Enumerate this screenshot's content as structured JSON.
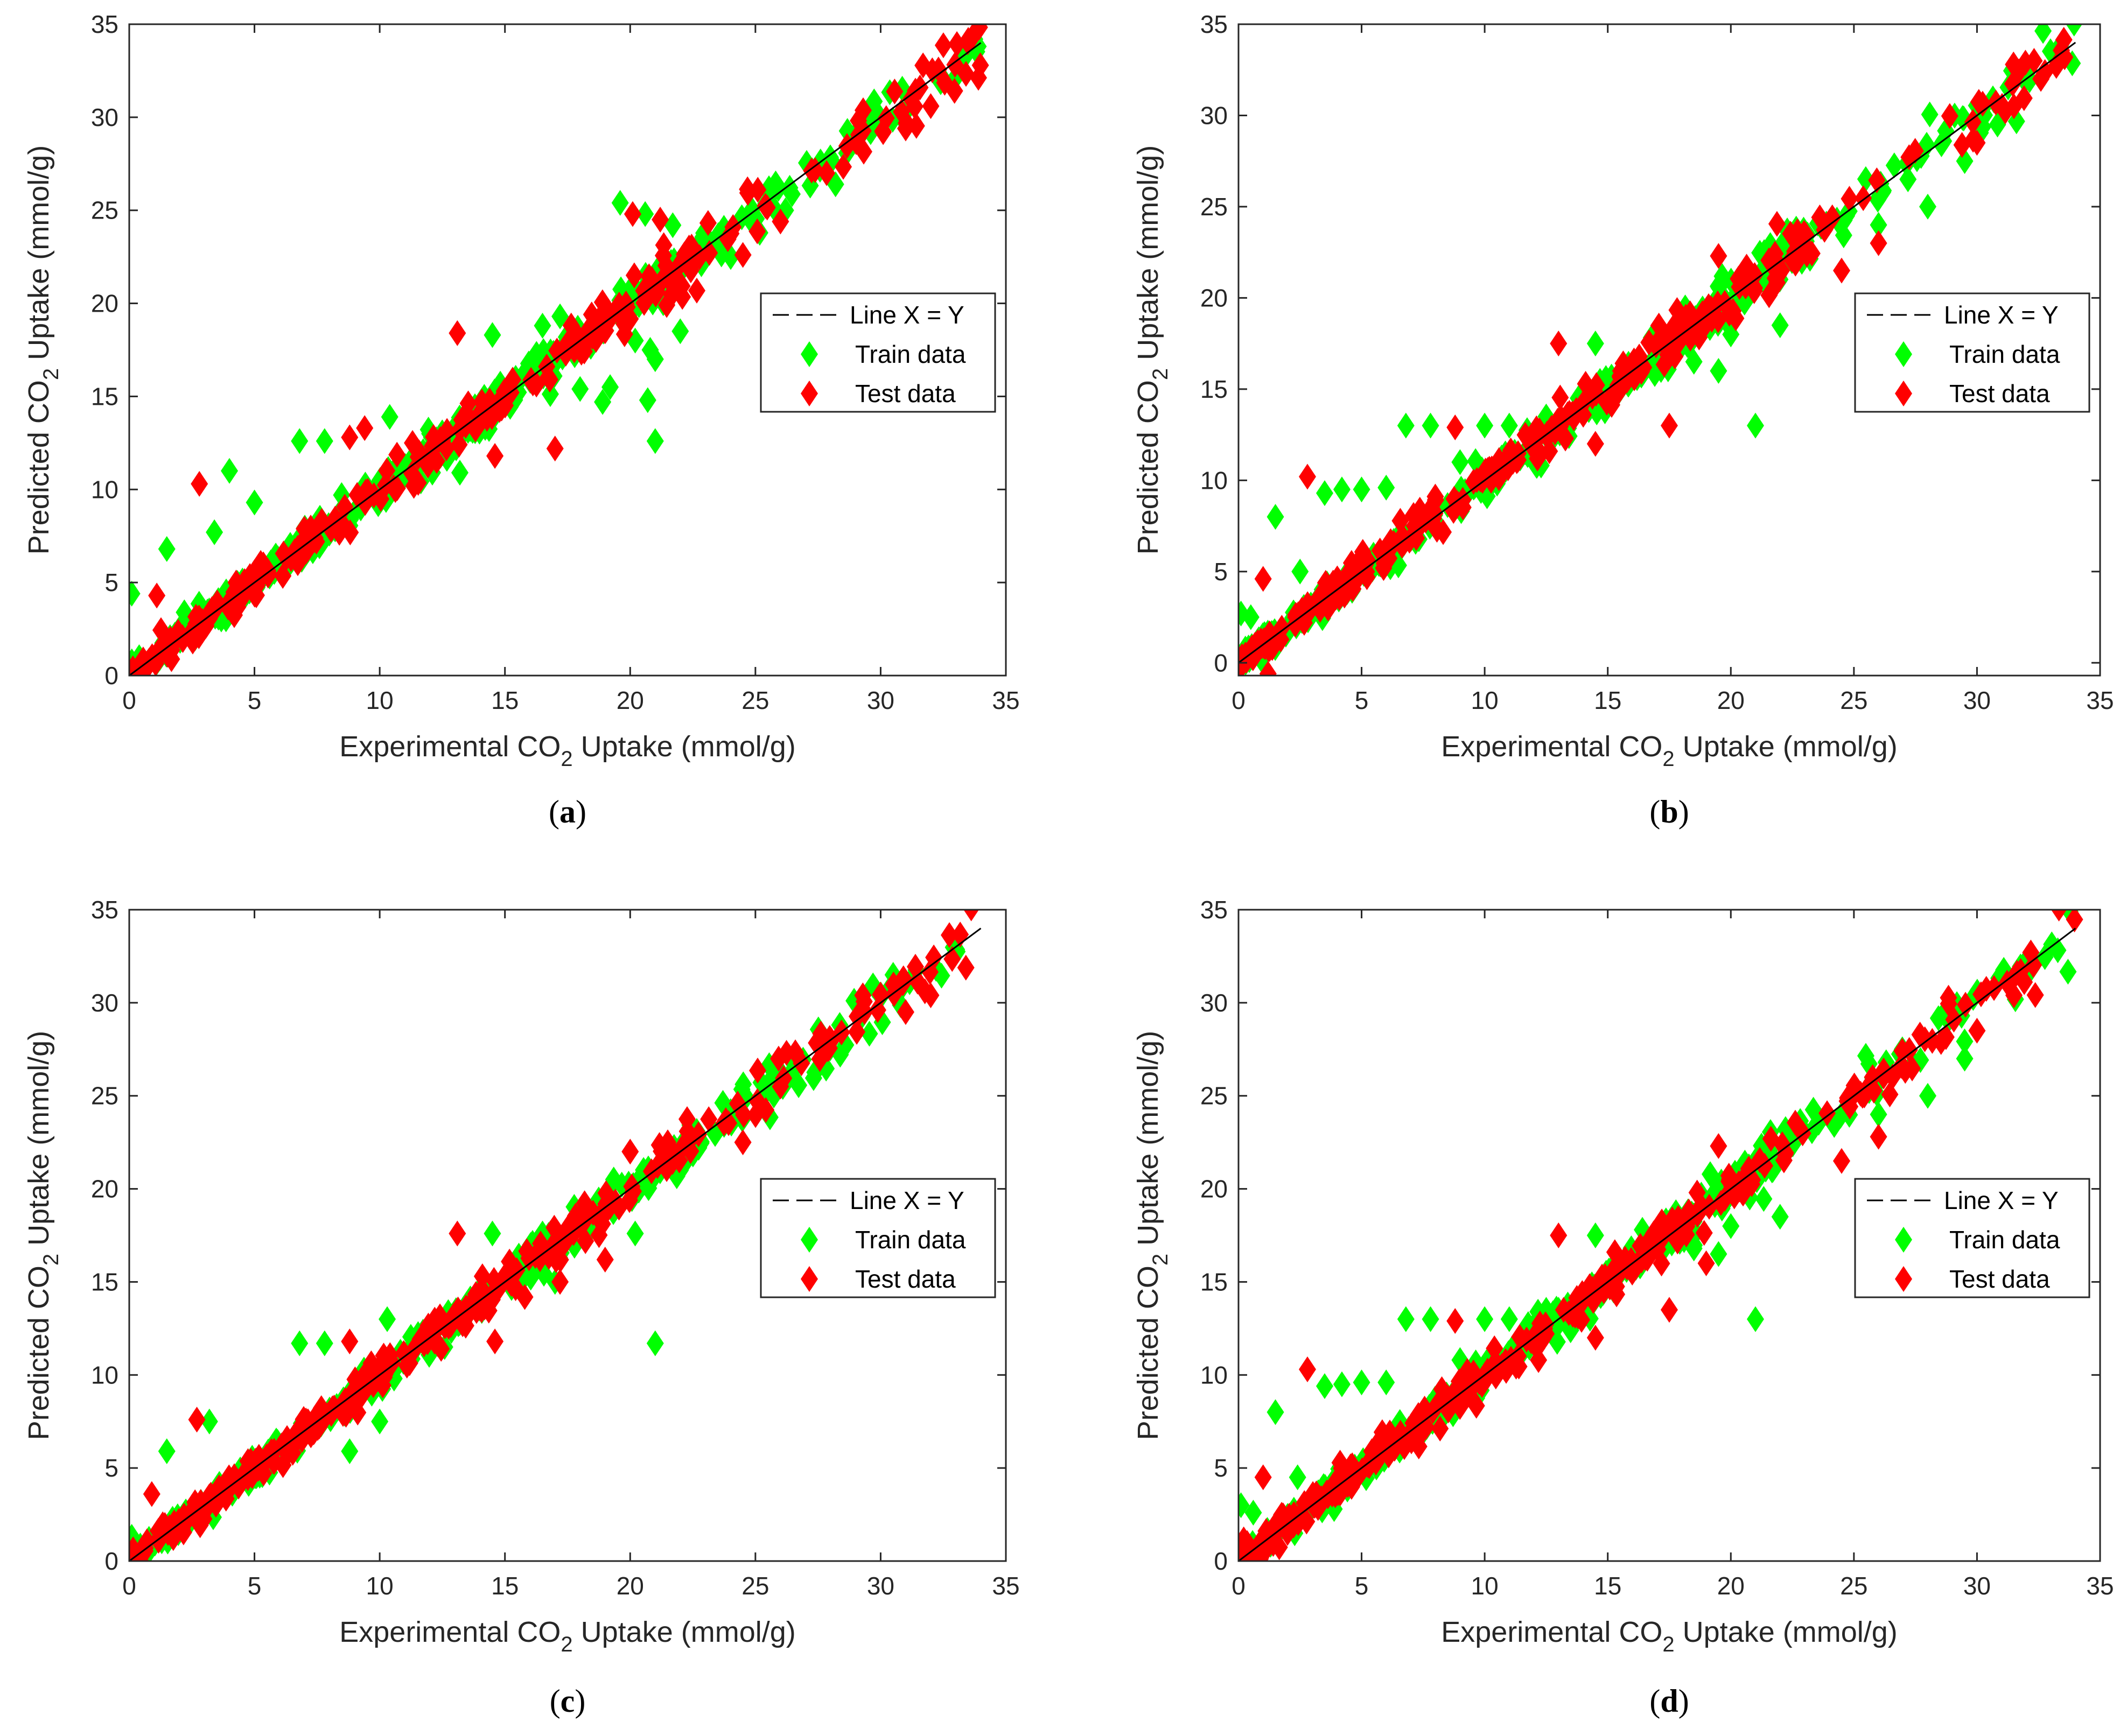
{
  "colors": {
    "train": "#00ff00",
    "test": "#ff0000",
    "line": "#000000",
    "axis": "#262626"
  },
  "chart_data": [
    {
      "panel_caption": {
        "open": "(",
        "letter": "a",
        "close": ")"
      },
      "type": "scatter",
      "title": "",
      "xlabel": {
        "prefix": "Experimental CO",
        "sub": "2",
        "suffix": " Uptake (mmol/g)"
      },
      "ylabel": {
        "prefix": "Predicted CO",
        "sub": "2",
        "suffix": " Uptake (mmol/g)"
      },
      "xlim": [
        0,
        35
      ],
      "ylim": [
        0,
        35
      ],
      "xticks": [
        0,
        5,
        10,
        15,
        20,
        25,
        30,
        35
      ],
      "yticks": [
        0,
        5,
        10,
        15,
        20,
        25,
        30,
        35
      ],
      "legend_position": "east",
      "seed": 11,
      "series": [
        {
          "name": "Line X = Y",
          "kind": "line",
          "x": [
            0,
            34
          ],
          "y": [
            0,
            34
          ]
        },
        {
          "name": "Train data",
          "kind": "markers",
          "count": 360,
          "noise": 0.55,
          "outliers": [
            [
              0.1,
              4.4
            ],
            [
              1.5,
              6.8
            ],
            [
              2.2,
              3.4
            ],
            [
              3.4,
              7.7
            ],
            [
              4.0,
              11.0
            ],
            [
              5.0,
              9.3
            ],
            [
              6.8,
              12.6
            ],
            [
              7.8,
              12.6
            ],
            [
              10.4,
              13.9
            ],
            [
              12.0,
              13.0
            ],
            [
              13.2,
              10.9
            ],
            [
              14.5,
              18.3
            ],
            [
              16.5,
              18.8
            ],
            [
              17.2,
              19.3
            ],
            [
              18.0,
              15.4
            ],
            [
              18.9,
              14.7
            ],
            [
              19.2,
              15.5
            ],
            [
              19.6,
              25.4
            ],
            [
              20.2,
              18.0
            ],
            [
              20.6,
              24.8
            ],
            [
              20.8,
              17.5
            ],
            [
              21.0,
              17.0
            ],
            [
              21.0,
              12.6
            ],
            [
              20.7,
              14.8
            ],
            [
              21.7,
              24.2
            ],
            [
              22.0,
              18.5
            ],
            [
              22.5,
              22.2
            ],
            [
              26.2,
              25.0
            ],
            [
              28.2,
              26.4
            ],
            [
              29.6,
              29.2
            ]
          ]
        },
        {
          "name": "Test data",
          "kind": "markers",
          "count": 300,
          "noise": 0.6,
          "outliers": [
            [
              1.1,
              4.3
            ],
            [
              2.8,
              10.3
            ],
            [
              8.8,
              12.8
            ],
            [
              9.4,
              13.3
            ],
            [
              13.1,
              18.4
            ],
            [
              14.6,
              11.8
            ],
            [
              17.0,
              12.2
            ],
            [
              20.1,
              24.8
            ],
            [
              21.2,
              24.5
            ],
            [
              24.5,
              22.6
            ],
            [
              26.0,
              24.4
            ],
            [
              30.1,
              29.2
            ],
            [
              31.0,
              29.4
            ],
            [
              32.0,
              30.6
            ]
          ]
        }
      ]
    },
    {
      "panel_caption": {
        "open": "(",
        "letter": "b",
        "close": ")"
      },
      "type": "scatter",
      "title": "",
      "xlabel": {
        "prefix": "Experimental CO",
        "sub": "2",
        "suffix": " Uptake (mmol/g)"
      },
      "ylabel": {
        "prefix": "Predicted CO",
        "sub": "2",
        "suffix": " Uptake (mmol/g)"
      },
      "xlim": [
        0,
        35
      ],
      "ylim": [
        -0.7,
        35
      ],
      "xticks": [
        0,
        5,
        10,
        15,
        20,
        25,
        30,
        35
      ],
      "yticks": [
        0,
        5,
        10,
        15,
        20,
        25,
        30,
        35
      ],
      "legend_position": "east",
      "seed": 23,
      "series": [
        {
          "name": "Line X = Y",
          "kind": "line",
          "x": [
            0,
            34
          ],
          "y": [
            0,
            34
          ]
        },
        {
          "name": "Train data",
          "kind": "markers",
          "count": 360,
          "noise": 0.55,
          "outliers": [
            [
              0.1,
              2.7
            ],
            [
              0.2,
              0.0
            ],
            [
              0.5,
              2.5
            ],
            [
              1.5,
              8.0
            ],
            [
              2.5,
              5.0
            ],
            [
              3.5,
              9.3
            ],
            [
              4.2,
              9.5
            ],
            [
              5.0,
              9.5
            ],
            [
              6.0,
              9.6
            ],
            [
              6.8,
              13.0
            ],
            [
              7.8,
              13.0
            ],
            [
              9.0,
              11.0
            ],
            [
              10.0,
              13.0
            ],
            [
              11.0,
              13.0
            ],
            [
              12.5,
              13.5
            ],
            [
              14.5,
              17.5
            ],
            [
              17.0,
              17.0
            ],
            [
              18.5,
              16.5
            ],
            [
              19.5,
              16.0
            ],
            [
              20.0,
              18.0
            ],
            [
              21.0,
              13.0
            ],
            [
              22.0,
              18.5
            ],
            [
              22.5,
              22.2
            ],
            [
              26.0,
              24.0
            ],
            [
              28.0,
              25.0
            ],
            [
              29.5,
              27.5
            ]
          ]
        },
        {
          "name": "Test data",
          "kind": "markers",
          "count": 300,
          "noise": 0.6,
          "outliers": [
            [
              1.0,
              4.6
            ],
            [
              1.2,
              -0.6
            ],
            [
              2.8,
              10.2
            ],
            [
              8.8,
              12.9
            ],
            [
              13.0,
              17.5
            ],
            [
              14.5,
              12.0
            ],
            [
              17.5,
              13.0
            ],
            [
              19.5,
              22.3
            ],
            [
              24.5,
              21.5
            ],
            [
              26.0,
              23.0
            ],
            [
              30.0,
              28.5
            ],
            [
              31.5,
              30.5
            ]
          ]
        }
      ]
    },
    {
      "panel_caption": {
        "open": "(",
        "letter": "c",
        "close": ")"
      },
      "type": "scatter",
      "title": "",
      "xlabel": {
        "prefix": "Experimental CO",
        "sub": "2",
        "suffix": " Uptake (mmol/g)"
      },
      "ylabel": {
        "prefix": "Predicted CO",
        "sub": "2",
        "suffix": " Uptake (mmol/g)"
      },
      "xlim": [
        0,
        35
      ],
      "ylim": [
        0,
        35
      ],
      "xticks": [
        0,
        5,
        10,
        15,
        20,
        25,
        30,
        35
      ],
      "yticks": [
        0,
        5,
        10,
        15,
        20,
        25,
        30,
        35
      ],
      "legend_position": "east",
      "seed": 37,
      "series": [
        {
          "name": "Line X = Y",
          "kind": "line",
          "x": [
            0,
            34
          ],
          "y": [
            0,
            34
          ]
        },
        {
          "name": "Train data",
          "kind": "markers",
          "count": 360,
          "noise": 0.5,
          "outliers": [
            [
              0.1,
              1.3
            ],
            [
              1.5,
              5.9
            ],
            [
              3.2,
              7.5
            ],
            [
              6.8,
              11.7
            ],
            [
              7.8,
              11.7
            ],
            [
              8.8,
              5.9
            ],
            [
              10.0,
              7.5
            ],
            [
              10.3,
              13.0
            ],
            [
              14.5,
              17.6
            ],
            [
              16.5,
              17.6
            ],
            [
              17.0,
              15.0
            ],
            [
              20.2,
              17.6
            ],
            [
              21.0,
              11.7
            ],
            [
              22.0,
              21.0
            ],
            [
              28.0,
              28.0
            ],
            [
              30.5,
              31.5
            ]
          ]
        },
        {
          "name": "Test data",
          "kind": "markers",
          "count": 300,
          "noise": 0.55,
          "outliers": [
            [
              0.9,
              3.6
            ],
            [
              2.7,
              7.6
            ],
            [
              8.8,
              11.8
            ],
            [
              9.4,
              10.0
            ],
            [
              13.1,
              17.6
            ],
            [
              14.6,
              11.8
            ],
            [
              17.2,
              15.0
            ],
            [
              19.0,
              16.2
            ],
            [
              20.0,
              22.0
            ],
            [
              21.5,
              22.5
            ],
            [
              24.5,
              22.5
            ],
            [
              26.0,
              25.5
            ],
            [
              31.0,
              29.5
            ],
            [
              32.0,
              30.4
            ]
          ]
        }
      ]
    },
    {
      "panel_caption": {
        "open": "(",
        "letter": "d",
        "close": ")"
      },
      "type": "scatter",
      "title": "",
      "xlabel": {
        "prefix": "Experimental CO",
        "sub": "2",
        "suffix": " Uptake (mmol/g)"
      },
      "ylabel": {
        "prefix": "Predicted CO",
        "sub": "2",
        "suffix": " Uptake (mmol/g)"
      },
      "xlim": [
        0,
        35
      ],
      "ylim": [
        0,
        35
      ],
      "xticks": [
        0,
        5,
        10,
        15,
        20,
        25,
        30,
        35
      ],
      "yticks": [
        0,
        5,
        10,
        15,
        20,
        25,
        30,
        35
      ],
      "legend_position": "east",
      "seed": 53,
      "series": [
        {
          "name": "Line X = Y",
          "kind": "line",
          "x": [
            0,
            34
          ],
          "y": [
            0,
            34
          ]
        },
        {
          "name": "Train data",
          "kind": "markers",
          "count": 360,
          "noise": 0.55,
          "outliers": [
            [
              0.1,
              3.0
            ],
            [
              0.3,
              0.2
            ],
            [
              0.6,
              2.6
            ],
            [
              1.5,
              8.0
            ],
            [
              2.4,
              4.5
            ],
            [
              3.5,
              9.4
            ],
            [
              4.2,
              9.5
            ],
            [
              5.0,
              9.6
            ],
            [
              6.0,
              9.6
            ],
            [
              6.8,
              13.0
            ],
            [
              7.8,
              13.0
            ],
            [
              9.0,
              10.8
            ],
            [
              10.0,
              13.0
            ],
            [
              11.0,
              13.0
            ],
            [
              12.5,
              13.5
            ],
            [
              14.5,
              17.5
            ],
            [
              17.0,
              17.0
            ],
            [
              18.5,
              16.8
            ],
            [
              19.5,
              16.5
            ],
            [
              20.0,
              18.0
            ],
            [
              21.0,
              13.0
            ],
            [
              22.0,
              18.5
            ],
            [
              26.0,
              24.0
            ],
            [
              28.0,
              25.0
            ],
            [
              29.5,
              27.0
            ]
          ]
        },
        {
          "name": "Test data",
          "kind": "markers",
          "count": 300,
          "noise": 0.6,
          "outliers": [
            [
              1.0,
              4.5
            ],
            [
              1.2,
              0.8
            ],
            [
              2.8,
              10.3
            ],
            [
              8.8,
              12.9
            ],
            [
              13.0,
              17.5
            ],
            [
              14.5,
              12.0
            ],
            [
              17.5,
              13.5
            ],
            [
              19.0,
              16.0
            ],
            [
              19.5,
              22.3
            ],
            [
              24.5,
              21.5
            ],
            [
              26.0,
              22.8
            ],
            [
              30.0,
              28.5
            ],
            [
              31.5,
              30.4
            ]
          ]
        }
      ]
    }
  ]
}
